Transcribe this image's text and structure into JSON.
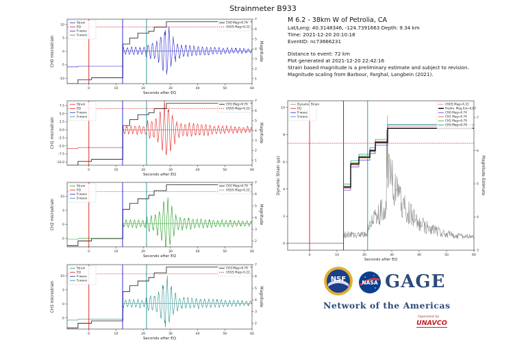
{
  "figure_title": "Strainmeter B933",
  "info": {
    "event_title": "M 6.2 - 38km W of Petrolia, CA",
    "latlong": "Lat/Long: 40.3148346, -124.7391663  Depth: 9.34 km",
    "time": "Time: 2021-12-20 20:10:18",
    "event_id": "EventID: nc73666231",
    "distance": "Distance to event: 72 km",
    "generated": "Plot generated at 2021-12-20 22:42:16",
    "note1": "Strain based magnitude is a preliminary estimate and subject to revision.",
    "note2": "Magnitude scaling from Barbour, Farghal, Langbein (2021)."
  },
  "logos": {
    "nsf": "NSF",
    "nasa": "NASA",
    "gage": "GAGE",
    "network": "Network of the Americas",
    "operated_by": "Operated by",
    "unavco": "UNAVCO"
  },
  "chart_data": [
    {
      "type": "line",
      "channel": "CH0",
      "color": "#1f1fd0",
      "xlabel": "Seconds after EQ",
      "ylabel": "CH0 microstrain",
      "ylabel_right": "Magnitude",
      "xlim": [
        -8,
        60
      ],
      "ylim": [
        -12,
        12
      ],
      "y2lim": [
        0.5,
        7
      ],
      "xticks": [
        0,
        10,
        20,
        30,
        40,
        50,
        60
      ],
      "yticks": [
        -10,
        -5,
        0,
        5,
        10
      ],
      "y2ticks": [
        1,
        2,
        3,
        4,
        5,
        6,
        7
      ],
      "legend_left": [
        "Strain",
        "EQ",
        "P-wave",
        "S-wave"
      ],
      "legend_right": [
        "CH0 Mag=6.74",
        "USGS Mag=6.22"
      ],
      "eq_time": 0,
      "p_wave": 12.4,
      "s_wave": 21.2,
      "usgs_mag": 6.22,
      "strain_mag": 6.74,
      "strain_pre": -5.5,
      "strain_post": 0.2,
      "mag_steps": [
        [
          -8,
          0.5
        ],
        [
          -4,
          0.9
        ],
        [
          1,
          1.1
        ],
        [
          12.5,
          4.5
        ],
        [
          15,
          5.1
        ],
        [
          18,
          5.6
        ],
        [
          22,
          5.8
        ],
        [
          24,
          6.2
        ],
        [
          28.5,
          6.74
        ]
      ]
    },
    {
      "type": "line",
      "channel": "CH1",
      "color": "#e02020",
      "xlabel": "Seconds after EQ",
      "ylabel": "CH1 microstrain",
      "ylabel_right": "Magnitude",
      "xlim": [
        -8,
        60
      ],
      "ylim": [
        -11,
        9
      ],
      "y2lim": [
        0.5,
        7
      ],
      "xticks": [
        0,
        10,
        20,
        30,
        40,
        50,
        60
      ],
      "yticks": [
        -10.0,
        -7.5,
        -5.0,
        -2.5,
        0.0,
        2.5,
        5.0,
        7.5
      ],
      "y2ticks": [
        1,
        2,
        3,
        4,
        5,
        6,
        7
      ],
      "legend_left": [
        "Strain",
        "EQ",
        "P-wave",
        "S-wave"
      ],
      "legend_right": [
        "CH1 Mag=6.74",
        "USGS Mag=6.22"
      ],
      "eq_time": 0,
      "p_wave": 12.4,
      "s_wave": 21.2,
      "usgs_mag": 6.22,
      "strain_mag": 6.74,
      "strain_pre": -5.5,
      "strain_post": 0.0,
      "mag_steps": [
        [
          -8,
          0.5
        ],
        [
          -4,
          0.9
        ],
        [
          1,
          1.1
        ],
        [
          12.5,
          4.5
        ],
        [
          15,
          5.1
        ],
        [
          18,
          5.6
        ],
        [
          22,
          5.8
        ],
        [
          24,
          6.2
        ],
        [
          28.5,
          6.74
        ]
      ]
    },
    {
      "type": "line",
      "channel": "CH2",
      "color": "#1a9a1a",
      "xlabel": "Seconds after EQ",
      "ylabel": "CH2 microstrain",
      "ylabel_right": "Magnitude",
      "xlim": [
        -8,
        60
      ],
      "ylim": [
        -8,
        15
      ],
      "y2lim": [
        1.5,
        7
      ],
      "xticks": [
        0,
        10,
        20,
        30,
        40,
        50,
        60
      ],
      "yticks": [
        -5,
        0,
        5,
        10
      ],
      "y2ticks": [
        2,
        3,
        4,
        5,
        6,
        7
      ],
      "legend_left": [
        "Strain",
        "EQ",
        "P-wave",
        "S-wave"
      ],
      "legend_right": [
        "CH2 Mag=6.79",
        "USGS Mag=6.22"
      ],
      "eq_time": 0,
      "p_wave": 12.4,
      "s_wave": 21.2,
      "usgs_mag": 6.22,
      "strain_mag": 6.79,
      "strain_pre": -5.0,
      "strain_post": 0.3,
      "mag_steps": [
        [
          -8,
          1.6
        ],
        [
          -4,
          2.0
        ],
        [
          1,
          2.2
        ],
        [
          12.5,
          4.7
        ],
        [
          15,
          5.2
        ],
        [
          18,
          5.6
        ],
        [
          22,
          5.9
        ],
        [
          24,
          6.3
        ],
        [
          28.5,
          6.79
        ]
      ]
    },
    {
      "type": "line",
      "channel": "CH3",
      "color": "#208c8c",
      "xlabel": "Seconds after EQ",
      "ylabel": "CH3 microstrain",
      "ylabel_right": "Magnitude",
      "xlim": [
        -8,
        60
      ],
      "ylim": [
        -9,
        14
      ],
      "y2lim": [
        1.5,
        7
      ],
      "xticks": [
        0,
        10,
        20,
        30,
        40,
        50,
        60
      ],
      "yticks": [
        -5,
        0,
        5,
        10
      ],
      "y2ticks": [
        2,
        3,
        4,
        5,
        6,
        7
      ],
      "legend_left": [
        "Strain",
        "EQ",
        "P-wave",
        "S-wave"
      ],
      "legend_right": [
        "CH3 Mag=6.79",
        "USGS Mag=6.22"
      ],
      "eq_time": 0,
      "p_wave": 12.4,
      "s_wave": 21.2,
      "usgs_mag": 6.22,
      "strain_mag": 6.79,
      "strain_pre": -5.5,
      "strain_post": 0.2,
      "mag_steps": [
        [
          -8,
          1.6
        ],
        [
          -4,
          2.0
        ],
        [
          1,
          2.2
        ],
        [
          12.5,
          4.7
        ],
        [
          15,
          5.2
        ],
        [
          18,
          5.6
        ],
        [
          22,
          5.9
        ],
        [
          24,
          6.3
        ],
        [
          28.5,
          6.79
        ]
      ]
    },
    {
      "type": "line",
      "channel": "combined",
      "xlabel": "Seconds after EQ",
      "ylabel": "Dynamic Strain (µε)",
      "ylabel_right": "Magnitude Estimate",
      "xlim": [
        -8,
        60
      ],
      "ylim": [
        -0.5,
        10.5
      ],
      "y2lim": [
        3,
        7.5
      ],
      "xticks": [
        0,
        10,
        20,
        30,
        40,
        50,
        60
      ],
      "yticks": [
        0,
        2,
        4,
        6,
        8,
        10
      ],
      "y2ticks": [
        3,
        4,
        5,
        6,
        7
      ],
      "legend_left": [
        "Dynamic Strain",
        "EQ",
        "P-wave",
        "S-wave"
      ],
      "legend_right": [
        "USGS Mag=6.22",
        "Prelim. Mag Est=6.67",
        "CH0 Mag=6.74",
        "CH1 Mag=6.74",
        "CH2 Mag=6.79",
        "CH3 Mag=6.79"
      ],
      "eq_time": 0,
      "p_wave": 12.4,
      "s_wave": 21.2,
      "usgs_mag": 6.22,
      "prelim_mag": 6.67,
      "channel_mags": [
        6.74,
        6.74,
        6.79,
        6.79
      ],
      "channel_colors": [
        "#3a3ad8",
        "#e03a3a",
        "#2a9a2a",
        "#2a8c8c"
      ],
      "prelim_steps": [
        [
          12.5,
          4.9
        ],
        [
          15,
          5.6
        ],
        [
          18,
          5.8
        ],
        [
          22,
          6.0
        ],
        [
          24,
          6.25
        ],
        [
          28.5,
          6.67
        ]
      ],
      "dynamic_peak": 9.7
    }
  ]
}
